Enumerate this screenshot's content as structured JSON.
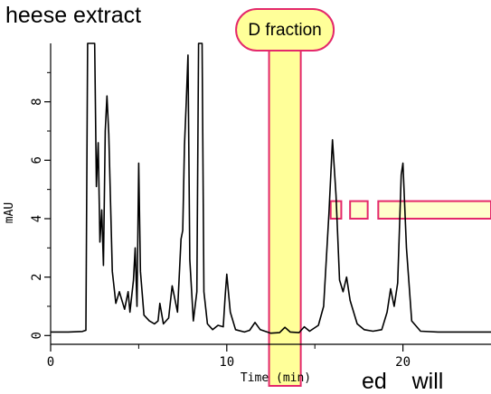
{
  "header_fragment": "heese extract",
  "footer_fragment": "ed    will",
  "chart_data": {
    "type": "line",
    "title": "",
    "xlabel": "Time (min)",
    "ylabel": "mAU",
    "xlim": [
      0,
      25
    ],
    "ylim": [
      -0.3,
      10
    ],
    "x_ticks": [
      0,
      10,
      20
    ],
    "y_ticks": [
      0,
      2,
      4,
      6,
      8
    ],
    "grid": false,
    "series": [
      {
        "color": "#000000",
        "points": [
          [
            0.0,
            0.12
          ],
          [
            1.0,
            0.12
          ],
          [
            1.8,
            0.14
          ],
          [
            2.0,
            0.18
          ],
          [
            2.1,
            10.0
          ],
          [
            2.5,
            10.0
          ],
          [
            2.6,
            5.1
          ],
          [
            2.7,
            6.6
          ],
          [
            2.8,
            3.2
          ],
          [
            2.9,
            4.3
          ],
          [
            3.0,
            2.4
          ],
          [
            3.1,
            7.0
          ],
          [
            3.2,
            8.2
          ],
          [
            3.3,
            6.9
          ],
          [
            3.5,
            2.2
          ],
          [
            3.7,
            1.1
          ],
          [
            3.9,
            1.5
          ],
          [
            4.0,
            1.3
          ],
          [
            4.2,
            0.9
          ],
          [
            4.4,
            1.5
          ],
          [
            4.5,
            0.8
          ],
          [
            4.7,
            1.9
          ],
          [
            4.8,
            3.0
          ],
          [
            4.9,
            1.0
          ],
          [
            5.0,
            5.9
          ],
          [
            5.1,
            2.2
          ],
          [
            5.3,
            0.7
          ],
          [
            5.6,
            0.5
          ],
          [
            5.9,
            0.4
          ],
          [
            6.1,
            0.5
          ],
          [
            6.2,
            1.1
          ],
          [
            6.4,
            0.4
          ],
          [
            6.7,
            0.6
          ],
          [
            6.9,
            1.7
          ],
          [
            7.0,
            1.4
          ],
          [
            7.2,
            0.8
          ],
          [
            7.4,
            3.3
          ],
          [
            7.5,
            3.6
          ],
          [
            7.6,
            6.5
          ],
          [
            7.7,
            8.0
          ],
          [
            7.8,
            9.6
          ],
          [
            7.9,
            2.6
          ],
          [
            8.1,
            0.5
          ],
          [
            8.3,
            1.5
          ],
          [
            8.4,
            10.0
          ],
          [
            8.6,
            10.0
          ],
          [
            8.7,
            1.5
          ],
          [
            8.9,
            0.4
          ],
          [
            9.2,
            0.2
          ],
          [
            9.5,
            0.35
          ],
          [
            9.8,
            0.3
          ],
          [
            9.9,
            1.3
          ],
          [
            10.0,
            2.1
          ],
          [
            10.2,
            0.8
          ],
          [
            10.5,
            0.2
          ],
          [
            11.0,
            0.12
          ],
          [
            11.3,
            0.18
          ],
          [
            11.6,
            0.45
          ],
          [
            11.9,
            0.2
          ],
          [
            12.5,
            0.08
          ],
          [
            13.0,
            0.1
          ],
          [
            13.3,
            0.28
          ],
          [
            13.6,
            0.12
          ],
          [
            14.1,
            0.1
          ],
          [
            14.4,
            0.3
          ],
          [
            14.7,
            0.15
          ],
          [
            15.2,
            0.35
          ],
          [
            15.5,
            1.0
          ],
          [
            15.8,
            4.2
          ],
          [
            16.0,
            6.7
          ],
          [
            16.2,
            4.8
          ],
          [
            16.4,
            1.9
          ],
          [
            16.6,
            1.5
          ],
          [
            16.8,
            2.0
          ],
          [
            17.0,
            1.2
          ],
          [
            17.4,
            0.4
          ],
          [
            17.8,
            0.2
          ],
          [
            18.3,
            0.15
          ],
          [
            18.8,
            0.2
          ],
          [
            19.1,
            0.8
          ],
          [
            19.3,
            1.6
          ],
          [
            19.5,
            1.0
          ],
          [
            19.7,
            1.8
          ],
          [
            19.9,
            5.5
          ],
          [
            20.0,
            5.9
          ],
          [
            20.2,
            3.0
          ],
          [
            20.5,
            0.5
          ],
          [
            21.0,
            0.15
          ],
          [
            22.0,
            0.12
          ],
          [
            23.0,
            0.12
          ],
          [
            25.0,
            0.12
          ]
        ]
      }
    ],
    "annotations": [
      {
        "label": "D fraction",
        "type": "highlight-band",
        "x_range": [
          12.4,
          14.2
        ],
        "fill": "#ffff99",
        "stroke": "#e4286b"
      },
      {
        "type": "highlight-boxes",
        "y_range": [
          4.0,
          4.6
        ],
        "x_ranges": [
          [
            15.9,
            16.5
          ],
          [
            17.0,
            18.0
          ],
          [
            18.6,
            25.0
          ]
        ],
        "fill": "#ffffcc",
        "stroke": "#e4286b"
      }
    ]
  }
}
